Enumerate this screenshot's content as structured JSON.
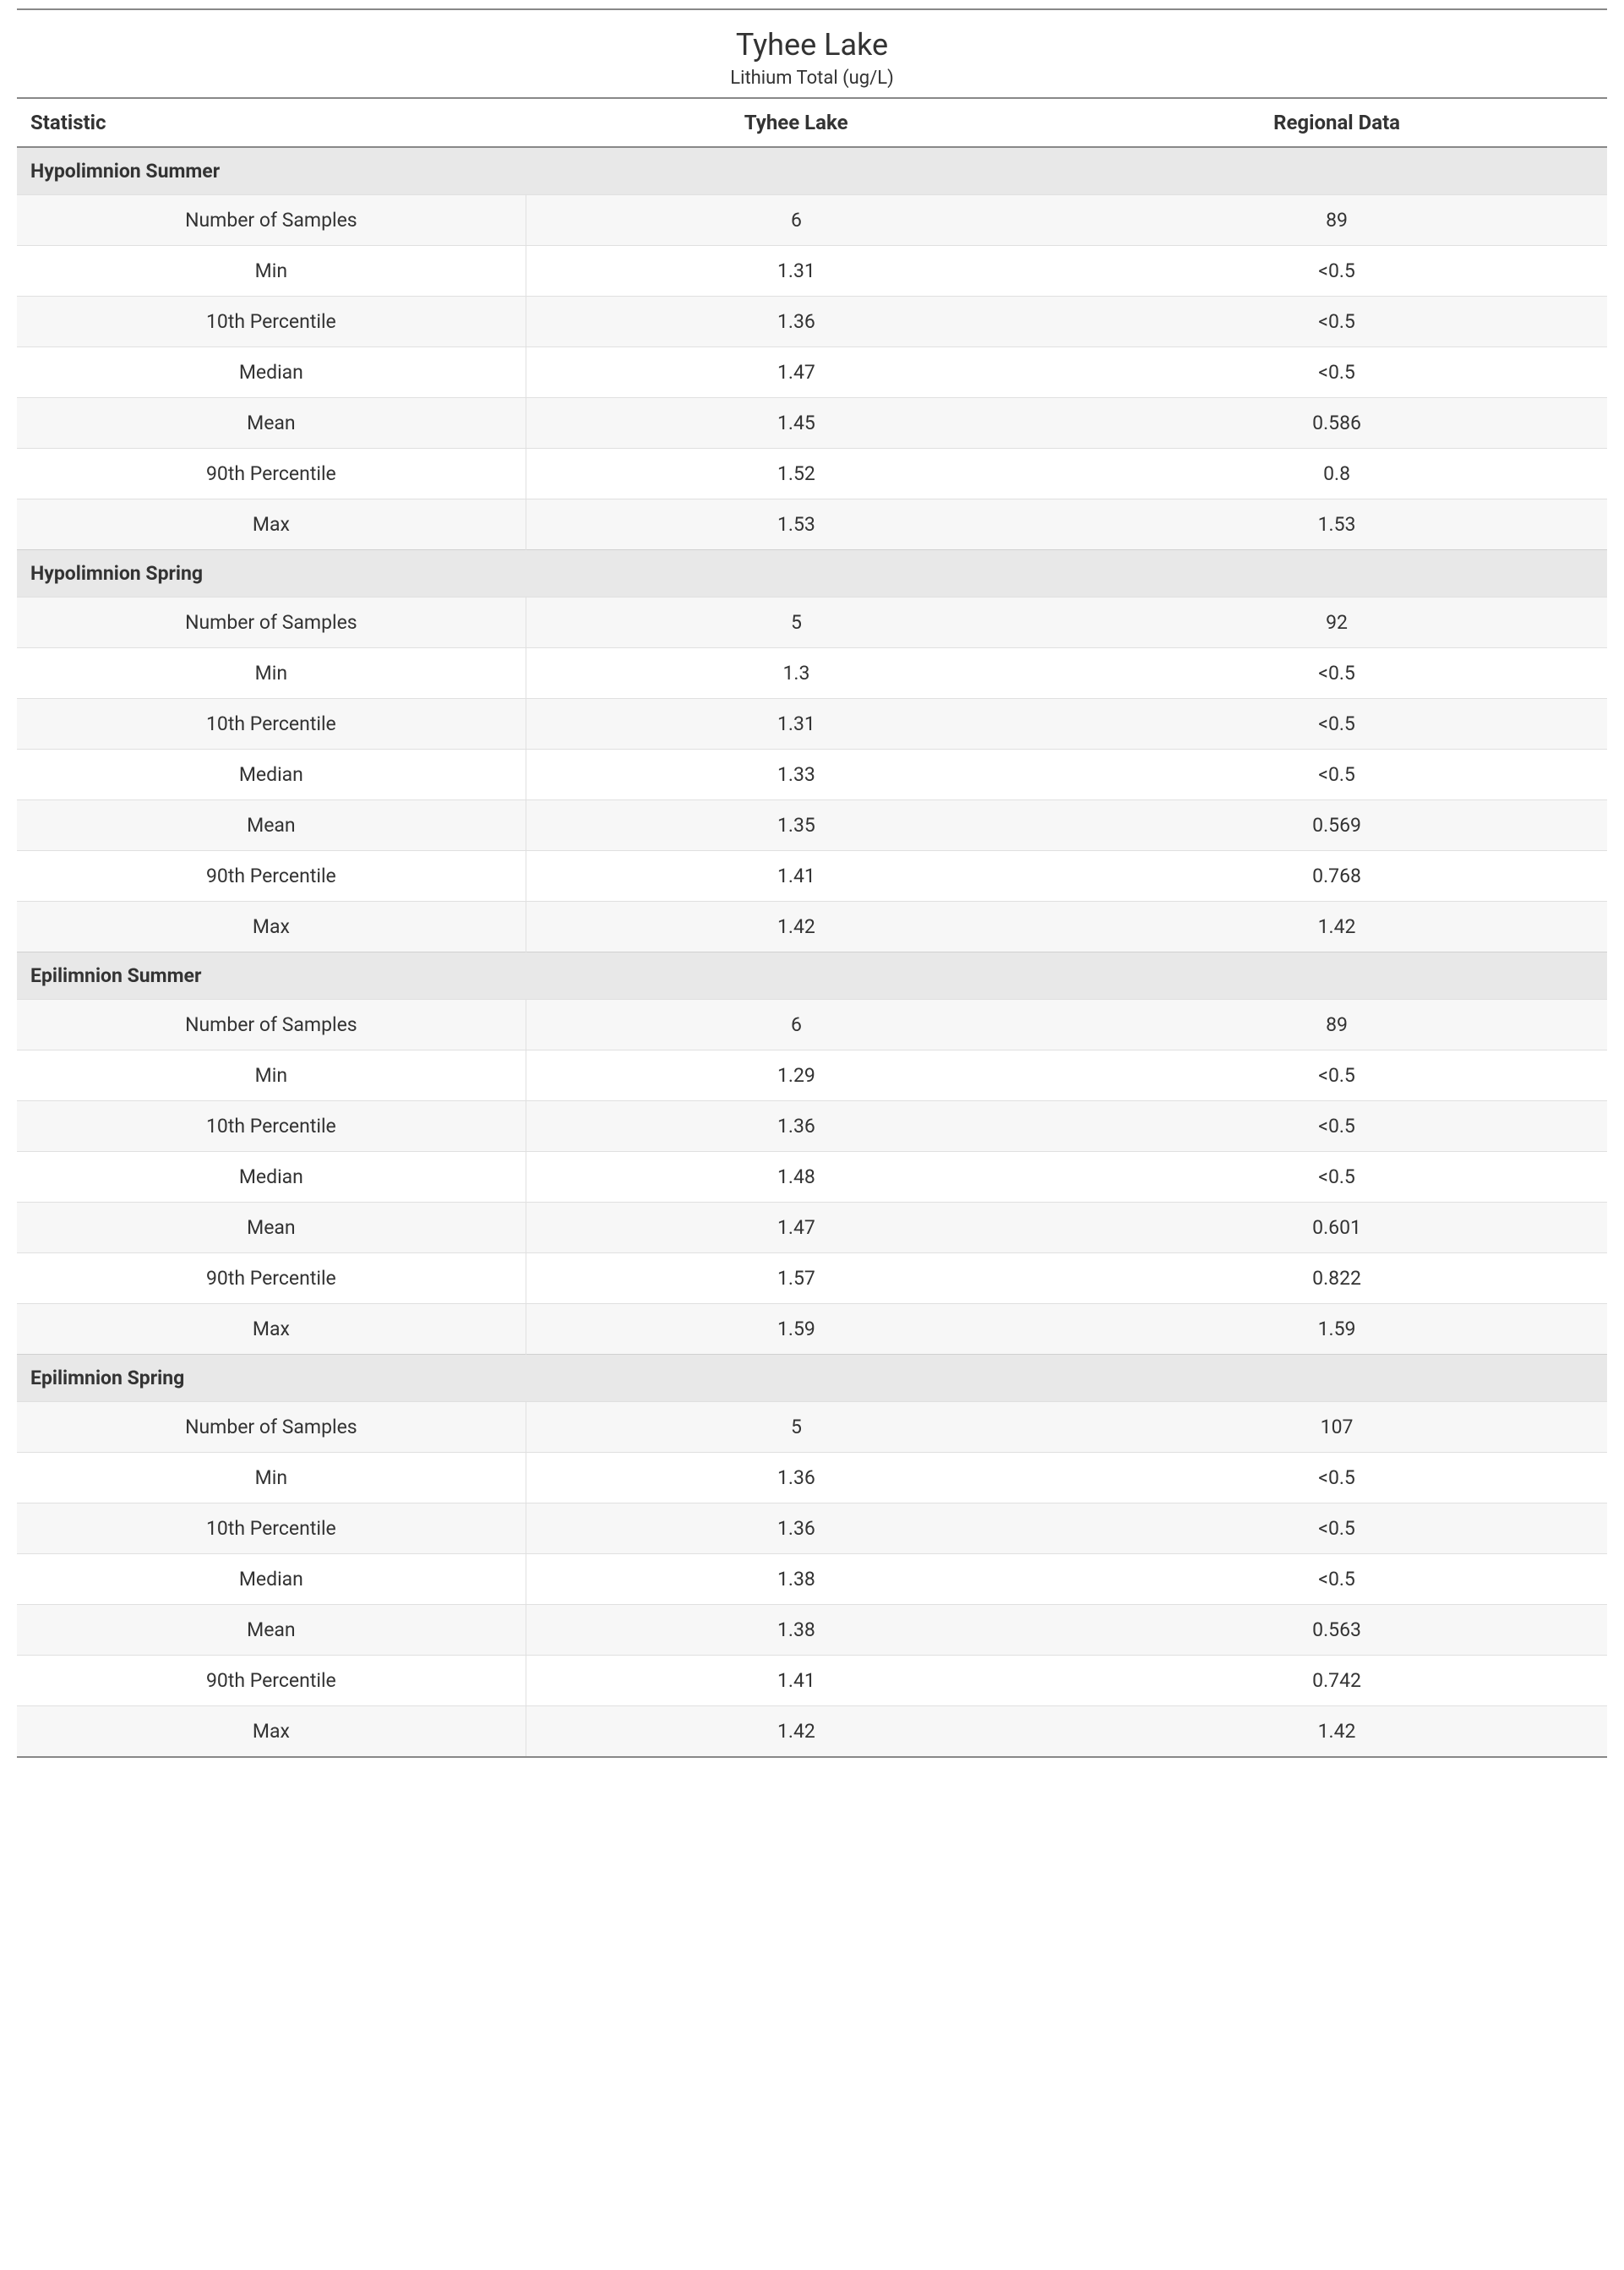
{
  "title": "Tyhee Lake",
  "subtitle": "Lithium Total (ug/L)",
  "columns": [
    "Statistic",
    "Tyhee Lake",
    "Regional Data"
  ],
  "colors": {
    "background": "#ffffff",
    "text": "#333333",
    "section_header_bg": "#e8e8e8",
    "row_alt_bg": "#f7f7f7",
    "border_strong": "#888888",
    "border_light": "#e0e0e0"
  },
  "typography": {
    "title_fontsize": 36,
    "subtitle_fontsize": 22,
    "header_fontsize": 24,
    "cell_fontsize": 23,
    "font_family": "Segoe UI"
  },
  "sections": [
    {
      "name": "Hypolimnion Summer",
      "rows": [
        {
          "stat": "Number of Samples",
          "lake": "6",
          "regional": "89"
        },
        {
          "stat": "Min",
          "lake": "1.31",
          "regional": "<0.5"
        },
        {
          "stat": "10th Percentile",
          "lake": "1.36",
          "regional": "<0.5"
        },
        {
          "stat": "Median",
          "lake": "1.47",
          "regional": "<0.5"
        },
        {
          "stat": "Mean",
          "lake": "1.45",
          "regional": "0.586"
        },
        {
          "stat": "90th Percentile",
          "lake": "1.52",
          "regional": "0.8"
        },
        {
          "stat": "Max",
          "lake": "1.53",
          "regional": "1.53"
        }
      ]
    },
    {
      "name": "Hypolimnion Spring",
      "rows": [
        {
          "stat": "Number of Samples",
          "lake": "5",
          "regional": "92"
        },
        {
          "stat": "Min",
          "lake": "1.3",
          "regional": "<0.5"
        },
        {
          "stat": "10th Percentile",
          "lake": "1.31",
          "regional": "<0.5"
        },
        {
          "stat": "Median",
          "lake": "1.33",
          "regional": "<0.5"
        },
        {
          "stat": "Mean",
          "lake": "1.35",
          "regional": "0.569"
        },
        {
          "stat": "90th Percentile",
          "lake": "1.41",
          "regional": "0.768"
        },
        {
          "stat": "Max",
          "lake": "1.42",
          "regional": "1.42"
        }
      ]
    },
    {
      "name": "Epilimnion Summer",
      "rows": [
        {
          "stat": "Number of Samples",
          "lake": "6",
          "regional": "89"
        },
        {
          "stat": "Min",
          "lake": "1.29",
          "regional": "<0.5"
        },
        {
          "stat": "10th Percentile",
          "lake": "1.36",
          "regional": "<0.5"
        },
        {
          "stat": "Median",
          "lake": "1.48",
          "regional": "<0.5"
        },
        {
          "stat": "Mean",
          "lake": "1.47",
          "regional": "0.601"
        },
        {
          "stat": "90th Percentile",
          "lake": "1.57",
          "regional": "0.822"
        },
        {
          "stat": "Max",
          "lake": "1.59",
          "regional": "1.59"
        }
      ]
    },
    {
      "name": "Epilimnion Spring",
      "rows": [
        {
          "stat": "Number of Samples",
          "lake": "5",
          "regional": "107"
        },
        {
          "stat": "Min",
          "lake": "1.36",
          "regional": "<0.5"
        },
        {
          "stat": "10th Percentile",
          "lake": "1.36",
          "regional": "<0.5"
        },
        {
          "stat": "Median",
          "lake": "1.38",
          "regional": "<0.5"
        },
        {
          "stat": "Mean",
          "lake": "1.38",
          "regional": "0.563"
        },
        {
          "stat": "90th Percentile",
          "lake": "1.41",
          "regional": "0.742"
        },
        {
          "stat": "Max",
          "lake": "1.42",
          "regional": "1.42"
        }
      ]
    }
  ]
}
